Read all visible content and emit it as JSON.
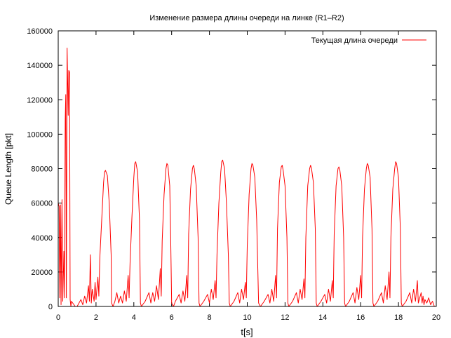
{
  "chart_data": {
    "type": "line",
    "title": "Изменение размера длины очереди на линке (R1–R2)",
    "xlabel": "t[s]",
    "ylabel": "Queue Length [pkt]",
    "xlim": [
      0,
      20
    ],
    "ylim": [
      0,
      160000
    ],
    "x_ticks": [
      "0",
      "2",
      "4",
      "6",
      "8",
      "10",
      "12",
      "14",
      "16",
      "18",
      "20"
    ],
    "y_ticks": [
      "0",
      "20000",
      "40000",
      "60000",
      "80000",
      "100000",
      "120000",
      "140000",
      "160000"
    ],
    "grid": false,
    "legend_position": "top-right",
    "series": [
      {
        "name": "Текущая длина очереди",
        "color": "#ff0000",
        "points": [
          [
            0.0,
            60000
          ],
          [
            0.05,
            58000
          ],
          [
            0.08,
            5000
          ],
          [
            0.12,
            59000
          ],
          [
            0.15,
            1000
          ],
          [
            0.2,
            62000
          ],
          [
            0.24,
            3000
          ],
          [
            0.3,
            32000
          ],
          [
            0.33,
            5000
          ],
          [
            0.37,
            108000
          ],
          [
            0.4,
            123000
          ],
          [
            0.43,
            5000
          ],
          [
            0.47,
            150000
          ],
          [
            0.5,
            130000
          ],
          [
            0.53,
            111000
          ],
          [
            0.56,
            137000
          ],
          [
            0.6,
            136000
          ],
          [
            0.63,
            4000
          ],
          [
            0.67,
            0
          ],
          [
            0.7,
            3000
          ],
          [
            0.9,
            0
          ],
          [
            1.0,
            0
          ],
          [
            1.2,
            4000
          ],
          [
            1.3,
            1000
          ],
          [
            1.4,
            6000
          ],
          [
            1.5,
            2000
          ],
          [
            1.6,
            12000
          ],
          [
            1.65,
            3000
          ],
          [
            1.7,
            30000
          ],
          [
            1.75,
            2000
          ],
          [
            1.8,
            10000
          ],
          [
            1.9,
            3000
          ],
          [
            1.95,
            14000
          ],
          [
            2.0,
            4000
          ],
          [
            2.1,
            17000
          ],
          [
            2.15,
            6000
          ],
          [
            2.2,
            28000
          ],
          [
            2.3,
            50000
          ],
          [
            2.4,
            72000
          ],
          [
            2.45,
            78000
          ],
          [
            2.5,
            79000
          ],
          [
            2.6,
            76000
          ],
          [
            2.7,
            60000
          ],
          [
            2.8,
            30000
          ],
          [
            2.82,
            2000
          ],
          [
            2.9,
            0
          ],
          [
            3.0,
            3000
          ],
          [
            3.1,
            8000
          ],
          [
            3.2,
            2000
          ],
          [
            3.3,
            6000
          ],
          [
            3.4,
            2000
          ],
          [
            3.5,
            9000
          ],
          [
            3.6,
            3000
          ],
          [
            3.7,
            18000
          ],
          [
            3.75,
            5000
          ],
          [
            3.8,
            25000
          ],
          [
            3.9,
            52000
          ],
          [
            4.0,
            75000
          ],
          [
            4.05,
            83000
          ],
          [
            4.1,
            84000
          ],
          [
            4.2,
            78000
          ],
          [
            4.3,
            50000
          ],
          [
            4.35,
            2000
          ],
          [
            4.4,
            0
          ],
          [
            4.6,
            3000
          ],
          [
            4.8,
            8000
          ],
          [
            4.9,
            2000
          ],
          [
            5.0,
            8000
          ],
          [
            5.1,
            3000
          ],
          [
            5.2,
            12000
          ],
          [
            5.3,
            4000
          ],
          [
            5.4,
            22000
          ],
          [
            5.45,
            6000
          ],
          [
            5.5,
            38000
          ],
          [
            5.6,
            65000
          ],
          [
            5.7,
            80000
          ],
          [
            5.75,
            83000
          ],
          [
            5.8,
            82000
          ],
          [
            5.9,
            70000
          ],
          [
            5.95,
            40000
          ],
          [
            6.0,
            2000
          ],
          [
            6.1,
            0
          ],
          [
            6.2,
            3000
          ],
          [
            6.4,
            7000
          ],
          [
            6.5,
            2000
          ],
          [
            6.6,
            9000
          ],
          [
            6.7,
            3000
          ],
          [
            6.8,
            18000
          ],
          [
            6.85,
            5000
          ],
          [
            6.9,
            42000
          ],
          [
            7.0,
            68000
          ],
          [
            7.1,
            80000
          ],
          [
            7.15,
            82000
          ],
          [
            7.2,
            80000
          ],
          [
            7.3,
            70000
          ],
          [
            7.4,
            40000
          ],
          [
            7.45,
            2000
          ],
          [
            7.5,
            0
          ],
          [
            7.7,
            3000
          ],
          [
            7.9,
            7000
          ],
          [
            8.0,
            2000
          ],
          [
            8.1,
            10000
          ],
          [
            8.2,
            4000
          ],
          [
            8.3,
            15000
          ],
          [
            8.35,
            5000
          ],
          [
            8.4,
            30000
          ],
          [
            8.5,
            60000
          ],
          [
            8.6,
            78000
          ],
          [
            8.65,
            84000
          ],
          [
            8.7,
            85000
          ],
          [
            8.8,
            80000
          ],
          [
            8.9,
            60000
          ],
          [
            9.0,
            30000
          ],
          [
            9.05,
            2000
          ],
          [
            9.1,
            0
          ],
          [
            9.3,
            3000
          ],
          [
            9.5,
            8000
          ],
          [
            9.6,
            2000
          ],
          [
            9.7,
            10000
          ],
          [
            9.8,
            4000
          ],
          [
            9.9,
            14000
          ],
          [
            9.95,
            5000
          ],
          [
            10.0,
            35000
          ],
          [
            10.1,
            65000
          ],
          [
            10.2,
            80000
          ],
          [
            10.25,
            83000
          ],
          [
            10.3,
            82000
          ],
          [
            10.4,
            75000
          ],
          [
            10.5,
            50000
          ],
          [
            10.6,
            2000
          ],
          [
            10.7,
            0
          ],
          [
            10.9,
            3000
          ],
          [
            11.1,
            7000
          ],
          [
            11.2,
            2000
          ],
          [
            11.3,
            10000
          ],
          [
            11.4,
            3000
          ],
          [
            11.5,
            18000
          ],
          [
            11.55,
            5000
          ],
          [
            11.6,
            45000
          ],
          [
            11.7,
            72000
          ],
          [
            11.8,
            81000
          ],
          [
            11.85,
            82000
          ],
          [
            11.9,
            79000
          ],
          [
            12.0,
            70000
          ],
          [
            12.1,
            40000
          ],
          [
            12.15,
            2000
          ],
          [
            12.2,
            0
          ],
          [
            12.4,
            3000
          ],
          [
            12.6,
            8000
          ],
          [
            12.7,
            2000
          ],
          [
            12.8,
            10000
          ],
          [
            12.9,
            4000
          ],
          [
            13.0,
            16000
          ],
          [
            13.05,
            5000
          ],
          [
            13.1,
            40000
          ],
          [
            13.2,
            70000
          ],
          [
            13.3,
            80000
          ],
          [
            13.35,
            82000
          ],
          [
            13.4,
            80000
          ],
          [
            13.5,
            72000
          ],
          [
            13.6,
            45000
          ],
          [
            13.65,
            2000
          ],
          [
            13.7,
            0
          ],
          [
            13.9,
            3000
          ],
          [
            14.1,
            7000
          ],
          [
            14.2,
            2000
          ],
          [
            14.3,
            10000
          ],
          [
            14.4,
            3000
          ],
          [
            14.5,
            15000
          ],
          [
            14.55,
            5000
          ],
          [
            14.6,
            42000
          ],
          [
            14.7,
            70000
          ],
          [
            14.8,
            80000
          ],
          [
            14.85,
            81000
          ],
          [
            14.9,
            79000
          ],
          [
            15.0,
            70000
          ],
          [
            15.1,
            40000
          ],
          [
            15.15,
            2000
          ],
          [
            15.2,
            0
          ],
          [
            15.4,
            3000
          ],
          [
            15.6,
            8000
          ],
          [
            15.7,
            2000
          ],
          [
            15.8,
            11000
          ],
          [
            15.9,
            4000
          ],
          [
            16.0,
            18000
          ],
          [
            16.05,
            5000
          ],
          [
            16.1,
            40000
          ],
          [
            16.2,
            68000
          ],
          [
            16.3,
            80000
          ],
          [
            16.35,
            83000
          ],
          [
            16.4,
            82000
          ],
          [
            16.5,
            75000
          ],
          [
            16.6,
            45000
          ],
          [
            16.65,
            2000
          ],
          [
            16.7,
            0
          ],
          [
            16.9,
            3000
          ],
          [
            17.1,
            8000
          ],
          [
            17.2,
            2000
          ],
          [
            17.3,
            12000
          ],
          [
            17.4,
            4000
          ],
          [
            17.5,
            20000
          ],
          [
            17.55,
            5000
          ],
          [
            17.6,
            40000
          ],
          [
            17.7,
            68000
          ],
          [
            17.8,
            80000
          ],
          [
            17.85,
            84000
          ],
          [
            17.9,
            83000
          ],
          [
            18.0,
            75000
          ],
          [
            18.1,
            45000
          ],
          [
            18.15,
            2000
          ],
          [
            18.2,
            0
          ],
          [
            18.4,
            3000
          ],
          [
            18.6,
            8000
          ],
          [
            18.7,
            2000
          ],
          [
            18.8,
            10000
          ],
          [
            18.9,
            3000
          ],
          [
            19.0,
            15000
          ],
          [
            19.05,
            2000
          ],
          [
            19.1,
            4000
          ],
          [
            19.2,
            8000
          ],
          [
            19.25,
            2000
          ],
          [
            19.3,
            6000
          ],
          [
            19.35,
            1000
          ],
          [
            19.4,
            4000
          ],
          [
            19.5,
            2000
          ],
          [
            19.6,
            5000
          ],
          [
            19.7,
            1000
          ],
          [
            19.8,
            3000
          ],
          [
            19.9,
            0
          ],
          [
            20.0,
            0
          ]
        ]
      }
    ]
  }
}
